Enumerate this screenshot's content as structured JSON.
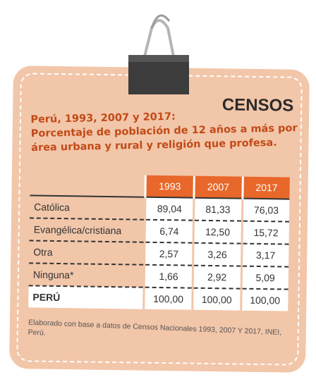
{
  "header": {
    "badge": "CENSOS",
    "title_lines": [
      "Perú, 1993, 2007 y 2017:",
      "Porcentaje de población de 12 años a más por",
      "área urbana y rural y religión que profesa."
    ]
  },
  "table": {
    "columns": [
      "1993",
      "2007",
      "2017"
    ],
    "rows": [
      [
        "Católica",
        "89,04",
        "81,33",
        "76,03"
      ],
      [
        "Evangélica/cristiana",
        "6,74",
        "12,50",
        "15,72"
      ],
      [
        "Otra",
        "2,57",
        "3,26",
        "3,17"
      ],
      [
        "Ninguna*",
        "1,66",
        "2,92",
        "5,09"
      ],
      [
        "PERÚ",
        "100,00",
        "100,00",
        "100,00"
      ]
    ]
  },
  "footnote": "Elaborado con base a datos de Censos Nacionales 1993, 2007 Y 2017, INEI, Perú."
}
